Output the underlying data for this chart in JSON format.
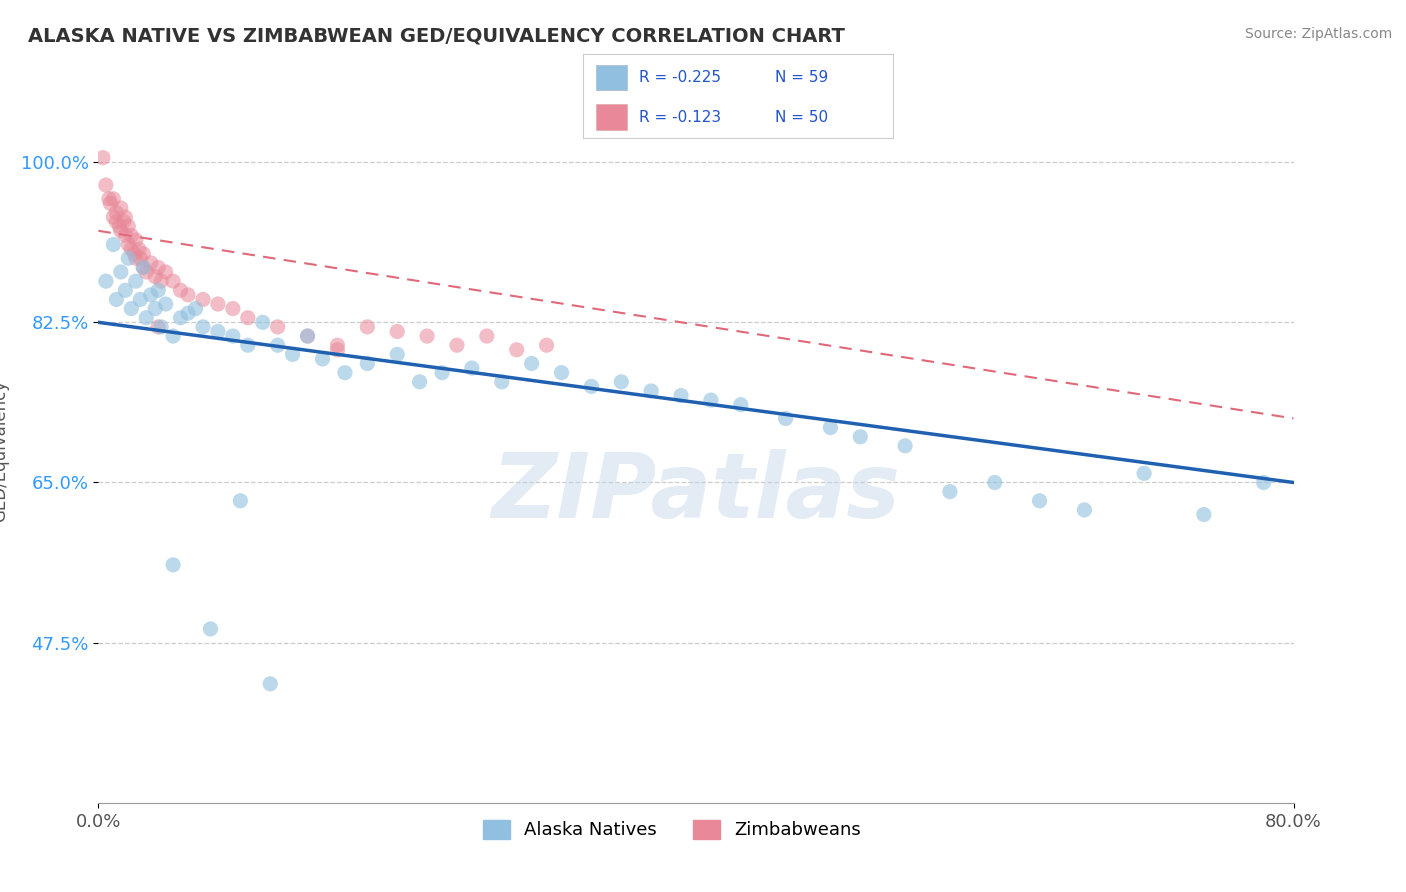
{
  "title": "ALASKA NATIVE VS ZIMBABWEAN GED/EQUIVALENCY CORRELATION CHART",
  "source_text": "Source: ZipAtlas.com",
  "ylabel": "GED/Equivalency",
  "xlim": [
    0.0,
    0.8
  ],
  "ylim": [
    0.3,
    1.07
  ],
  "xtick_labels": [
    "0.0%",
    "80.0%"
  ],
  "xtick_positions": [
    0.0,
    0.8
  ],
  "ytick_labels": [
    "47.5%",
    "65.0%",
    "82.5%",
    "100.0%"
  ],
  "ytick_positions": [
    0.475,
    0.65,
    0.825,
    1.0
  ],
  "alaska_color": "#90bfdf",
  "zimbabwe_color": "#e88898",
  "alaska_line_color": "#2060b0",
  "zimbabwe_line_color": "#e06878",
  "scatter_size": 120,
  "watermark_text": "ZIPatlas",
  "legend_r_color": "#2255cc",
  "alaska_N": 59,
  "zimbabwe_N": 50,
  "alaska_line_x0": 0.0,
  "alaska_line_y0": 0.825,
  "alaska_line_x1": 0.8,
  "alaska_line_y1": 0.65,
  "zimbabwe_line_x0": 0.0,
  "zimbabwe_line_y0": 0.925,
  "zimbabwe_line_x1": 0.8,
  "zimbabwe_line_y1": 0.72,
  "alaska_points_x": [
    0.005,
    0.01,
    0.012,
    0.015,
    0.018,
    0.02,
    0.022,
    0.025,
    0.028,
    0.03,
    0.032,
    0.035,
    0.038,
    0.04,
    0.042,
    0.045,
    0.05,
    0.055,
    0.06,
    0.065,
    0.07,
    0.08,
    0.09,
    0.1,
    0.11,
    0.12,
    0.13,
    0.14,
    0.15,
    0.165,
    0.18,
    0.2,
    0.215,
    0.23,
    0.25,
    0.27,
    0.29,
    0.31,
    0.33,
    0.35,
    0.37,
    0.39,
    0.41,
    0.43,
    0.46,
    0.49,
    0.51,
    0.54,
    0.57,
    0.6,
    0.63,
    0.66,
    0.7,
    0.74,
    0.78,
    0.05,
    0.075,
    0.095,
    0.115
  ],
  "alaska_points_y": [
    0.87,
    0.91,
    0.85,
    0.88,
    0.86,
    0.895,
    0.84,
    0.87,
    0.85,
    0.885,
    0.83,
    0.855,
    0.84,
    0.86,
    0.82,
    0.845,
    0.81,
    0.83,
    0.835,
    0.84,
    0.82,
    0.815,
    0.81,
    0.8,
    0.825,
    0.8,
    0.79,
    0.81,
    0.785,
    0.77,
    0.78,
    0.79,
    0.76,
    0.77,
    0.775,
    0.76,
    0.78,
    0.77,
    0.755,
    0.76,
    0.75,
    0.745,
    0.74,
    0.735,
    0.72,
    0.71,
    0.7,
    0.69,
    0.64,
    0.65,
    0.63,
    0.62,
    0.66,
    0.615,
    0.65,
    0.56,
    0.49,
    0.63,
    0.43
  ],
  "zimbabwe_points_x": [
    0.003,
    0.005,
    0.007,
    0.008,
    0.01,
    0.01,
    0.012,
    0.012,
    0.014,
    0.015,
    0.015,
    0.017,
    0.018,
    0.018,
    0.02,
    0.02,
    0.022,
    0.022,
    0.024,
    0.025,
    0.025,
    0.027,
    0.028,
    0.03,
    0.03,
    0.032,
    0.035,
    0.038,
    0.04,
    0.042,
    0.045,
    0.05,
    0.055,
    0.06,
    0.07,
    0.08,
    0.09,
    0.1,
    0.12,
    0.14,
    0.16,
    0.18,
    0.2,
    0.22,
    0.24,
    0.26,
    0.28,
    0.3,
    0.16,
    0.04
  ],
  "zimbabwe_points_y": [
    1.005,
    0.975,
    0.96,
    0.955,
    0.94,
    0.96,
    0.935,
    0.945,
    0.93,
    0.95,
    0.925,
    0.935,
    0.92,
    0.94,
    0.91,
    0.93,
    0.92,
    0.905,
    0.9,
    0.915,
    0.895,
    0.905,
    0.895,
    0.885,
    0.9,
    0.88,
    0.89,
    0.875,
    0.885,
    0.87,
    0.88,
    0.87,
    0.86,
    0.855,
    0.85,
    0.845,
    0.84,
    0.83,
    0.82,
    0.81,
    0.8,
    0.82,
    0.815,
    0.81,
    0.8,
    0.81,
    0.795,
    0.8,
    0.795,
    0.82
  ]
}
